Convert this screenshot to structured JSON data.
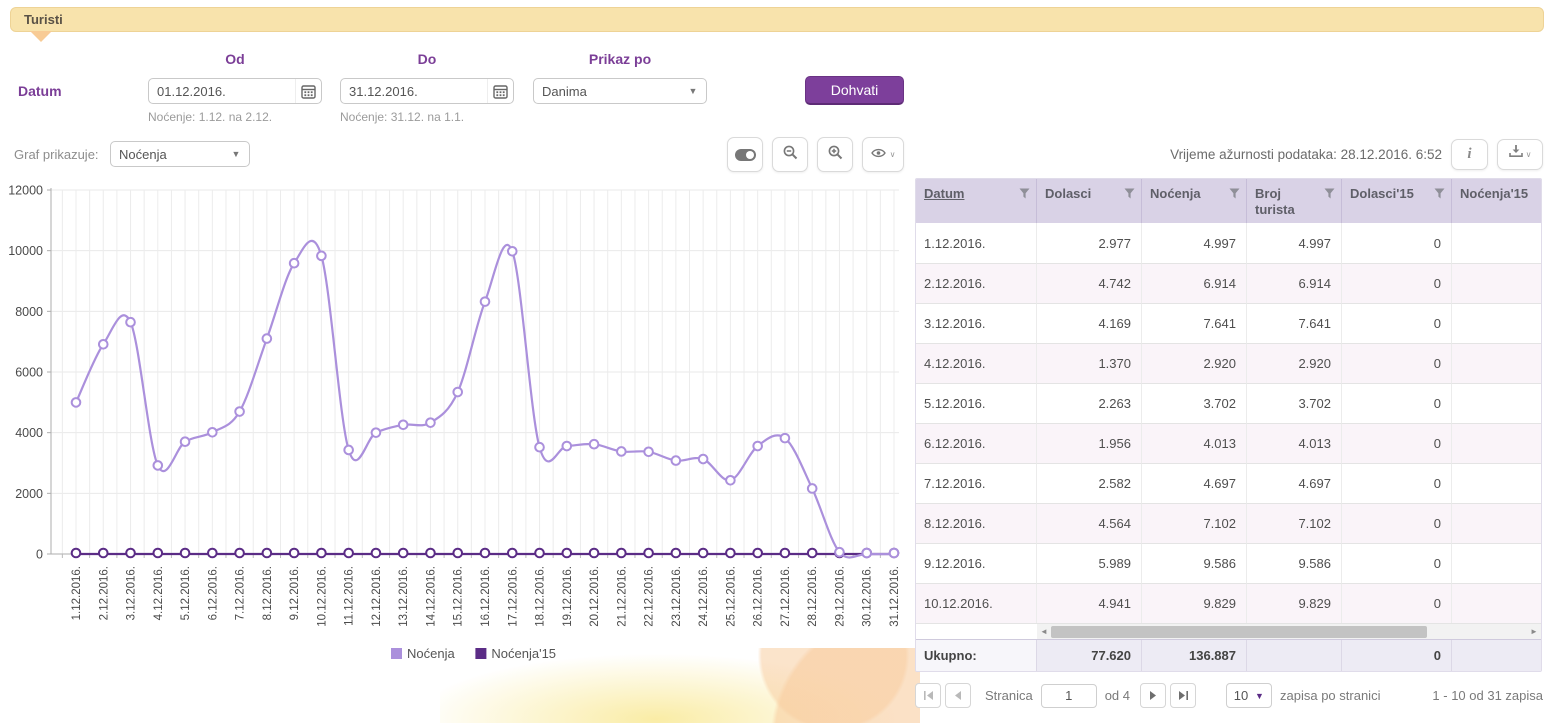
{
  "header": {
    "title": "Turisti"
  },
  "filters": {
    "datum_label": "Datum",
    "od_label": "Od",
    "do_label": "Do",
    "prikaz_label": "Prikaz po",
    "od_value": "01.12.2016.",
    "do_value": "31.12.2016.",
    "prikaz_value": "Danima",
    "od_hint": "Noćenje: 1.12. na 2.12.",
    "do_hint": "Noćenje: 31.12. na 1.1.",
    "fetch_label": "Dohvati"
  },
  "chart_controls": {
    "graf_label": "Graf prikazuje:",
    "graf_value": "Noćenja"
  },
  "info_text": "Vrijeme ažurnosti podataka: 28.12.2016. 6:52",
  "table": {
    "columns": [
      "Datum",
      "Dolasci",
      "Noćenja",
      "Broj turista",
      "Dolasci'15",
      "Noćenja'15"
    ],
    "sorted_column": "Datum",
    "rows": [
      [
        "1.12.2016.",
        "2.977",
        "4.997",
        "4.997",
        "0",
        ""
      ],
      [
        "2.12.2016.",
        "4.742",
        "6.914",
        "6.914",
        "0",
        ""
      ],
      [
        "3.12.2016.",
        "4.169",
        "7.641",
        "7.641",
        "0",
        ""
      ],
      [
        "4.12.2016.",
        "1.370",
        "2.920",
        "2.920",
        "0",
        ""
      ],
      [
        "5.12.2016.",
        "2.263",
        "3.702",
        "3.702",
        "0",
        ""
      ],
      [
        "6.12.2016.",
        "1.956",
        "4.013",
        "4.013",
        "0",
        ""
      ],
      [
        "7.12.2016.",
        "2.582",
        "4.697",
        "4.697",
        "0",
        ""
      ],
      [
        "8.12.2016.",
        "4.564",
        "7.102",
        "7.102",
        "0",
        ""
      ],
      [
        "9.12.2016.",
        "5.989",
        "9.586",
        "9.586",
        "0",
        ""
      ],
      [
        "10.12.2016.",
        "4.941",
        "9.829",
        "9.829",
        "0",
        ""
      ]
    ],
    "totals_label": "Ukupno:",
    "totals": [
      "77.620",
      "136.887",
      "",
      "0",
      ""
    ]
  },
  "pagination": {
    "stranica_label": "Stranica",
    "page_value": "1",
    "of_label": "od 4",
    "page_size": "10",
    "per_page_label": "zapisa po stranici",
    "range_label": "1 - 10 od 31 zapisa"
  },
  "chart_data": {
    "type": "line",
    "title": "",
    "xlabel": "",
    "ylabel": "",
    "ylim": [
      0,
      12000
    ],
    "yticks": [
      0,
      2000,
      4000,
      6000,
      8000,
      10000,
      12000
    ],
    "grid": true,
    "legend_position": "bottom",
    "x": [
      "1.12.2016.",
      "2.12.2016.",
      "3.12.2016.",
      "4.12.2016.",
      "5.12.2016.",
      "6.12.2016.",
      "7.12.2016.",
      "8.12.2016.",
      "9.12.2016.",
      "10.12.2016.",
      "11.12.2016.",
      "12.12.2016.",
      "13.12.2016.",
      "14.12.2016.",
      "15.12.2016.",
      "16.12.2016.",
      "17.12.2016.",
      "18.12.2016.",
      "19.12.2016.",
      "20.12.2016.",
      "21.12.2016.",
      "22.12.2016.",
      "23.12.2016.",
      "24.12.2016.",
      "25.12.2016.",
      "26.12.2016.",
      "27.12.2016.",
      "28.12.2016.",
      "29.12.2016.",
      "30.12.2016.",
      "31.12.2016."
    ],
    "series": [
      {
        "name": "Noćenja",
        "color": "#ab90dc",
        "values": [
          4997,
          6914,
          7641,
          2920,
          3702,
          4013,
          4697,
          7102,
          9586,
          9829,
          3430,
          4000,
          4260,
          4330,
          5340,
          8320,
          9980,
          3520,
          3560,
          3620,
          3380,
          3370,
          3080,
          3130,
          2430,
          3560,
          3820,
          2160,
          60,
          0,
          0
        ]
      },
      {
        "name": "Noćenja'15",
        "color": "#5b2c86",
        "values": [
          0,
          0,
          0,
          0,
          0,
          0,
          0,
          0,
          0,
          0,
          0,
          0,
          0,
          0,
          0,
          0,
          0,
          0,
          0,
          0,
          0,
          0,
          0,
          0,
          0,
          0,
          0,
          0,
          0,
          0,
          0
        ]
      }
    ]
  },
  "colors": {
    "accent_purple": "#7b3e97",
    "button_purple": "#7d3f9b",
    "panel_tan": "#f8e3ac",
    "series_light": "#ab90dc",
    "series_dark": "#5b2c86",
    "table_header_bg": "#d9d2e6"
  }
}
